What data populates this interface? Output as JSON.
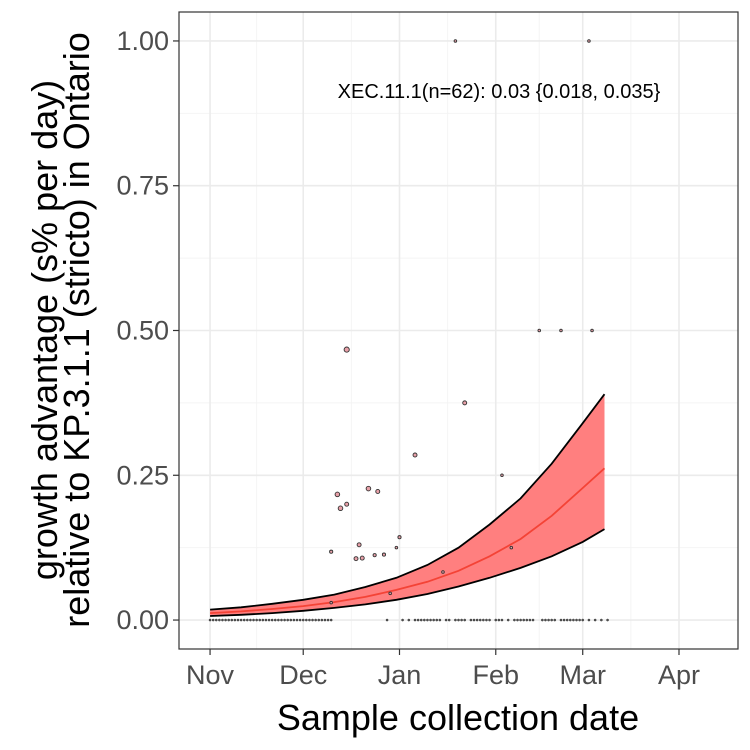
{
  "chart_data": {
    "type": "scatter",
    "xlabel": "Sample collection date",
    "ylabel_lines": [
      "growth advantage (s% per day)",
      "relative to KP.3.1.1 (stricto) in Ontario"
    ],
    "annotation": "XEC.11.1(n=62): 0.03 {0.018, 0.035}",
    "x_ticks": [
      "Nov",
      "Dec",
      "Jan",
      "Feb",
      "Mar",
      "Apr"
    ],
    "x_tick_days": [
      0,
      30,
      61,
      92,
      120,
      151
    ],
    "x_range_days": [
      -10,
      170
    ],
    "y_ticks": [
      0.0,
      0.25,
      0.5,
      0.75,
      1.0
    ],
    "y_tick_labels": [
      "0.00",
      "0.25",
      "0.50",
      "0.75",
      "1.00"
    ],
    "y_range": [
      -0.05,
      1.05
    ],
    "grid": true,
    "colors": {
      "fit_line": "#f44336",
      "ribbon_fill": "#ff7f7f",
      "ci_line": "#000000",
      "point_fill": "#e8a0a8",
      "point_stroke": "#333333",
      "panel_border": "#333333",
      "grid_major": "#ebebeb",
      "grid_minor": "#f4f4f4"
    },
    "fit": {
      "x_days": [
        0,
        10,
        20,
        30,
        40,
        50,
        60,
        70,
        80,
        90,
        100,
        110,
        120,
        127
      ],
      "mid": [
        0.012,
        0.015,
        0.019,
        0.024,
        0.031,
        0.04,
        0.052,
        0.066,
        0.085,
        0.11,
        0.14,
        0.18,
        0.228,
        0.262
      ],
      "lower": [
        0.007,
        0.009,
        0.012,
        0.016,
        0.021,
        0.027,
        0.035,
        0.045,
        0.058,
        0.073,
        0.09,
        0.11,
        0.135,
        0.157
      ],
      "upper": [
        0.018,
        0.022,
        0.028,
        0.035,
        0.044,
        0.057,
        0.073,
        0.095,
        0.125,
        0.165,
        0.21,
        0.27,
        0.34,
        0.39
      ]
    },
    "points": [
      {
        "x": 44,
        "y": 0.467,
        "s": 2.6
      },
      {
        "x": 82,
        "y": 0.375,
        "s": 2
      },
      {
        "x": 66,
        "y": 0.285,
        "s": 2
      },
      {
        "x": 41,
        "y": 0.217,
        "s": 2.3
      },
      {
        "x": 42,
        "y": 0.193,
        "s": 2.3
      },
      {
        "x": 44,
        "y": 0.2,
        "s": 2
      },
      {
        "x": 48,
        "y": 0.13,
        "s": 2
      },
      {
        "x": 51,
        "y": 0.227,
        "s": 2.3
      },
      {
        "x": 54,
        "y": 0.222,
        "s": 2
      },
      {
        "x": 39,
        "y": 0.118,
        "s": 1.6
      },
      {
        "x": 47,
        "y": 0.106,
        "s": 2
      },
      {
        "x": 49,
        "y": 0.107,
        "s": 2
      },
      {
        "x": 53,
        "y": 0.112,
        "s": 1.6
      },
      {
        "x": 56,
        "y": 0.113,
        "s": 1.6
      },
      {
        "x": 58,
        "y": 0.046,
        "s": 1.3
      },
      {
        "x": 60,
        "y": 0.125,
        "s": 1.3
      },
      {
        "x": 61,
        "y": 0.143,
        "s": 1.6
      },
      {
        "x": 39,
        "y": 0.03,
        "s": 1.3
      },
      {
        "x": 75,
        "y": 0.083,
        "s": 1.3
      },
      {
        "x": 97,
        "y": 0.125,
        "s": 1.3
      },
      {
        "x": 94,
        "y": 0.25,
        "s": 1.3
      },
      {
        "x": 79,
        "y": 1.0,
        "s": 1.3
      },
      {
        "x": 122,
        "y": 1.0,
        "s": 1.3
      },
      {
        "x": 106,
        "y": 0.5,
        "s": 1.3
      },
      {
        "x": 113,
        "y": 0.5,
        "s": 1.3
      },
      {
        "x": 123,
        "y": 0.5,
        "s": 1.3
      }
    ],
    "zero_point_days": [
      0,
      1,
      2,
      3,
      4,
      5,
      6,
      7,
      8,
      9,
      10,
      11,
      12,
      13,
      14,
      15,
      16,
      17,
      18,
      19,
      20,
      21,
      22,
      23,
      24,
      25,
      26,
      27,
      28,
      29,
      30,
      31,
      32,
      33,
      34,
      35,
      36,
      37,
      38,
      39,
      57,
      62,
      64,
      66,
      67,
      68,
      69,
      70,
      71,
      72,
      73,
      74,
      76,
      77,
      79,
      80,
      81,
      82,
      84,
      85,
      86,
      87,
      88,
      89,
      90,
      92,
      93,
      94,
      96,
      98,
      99,
      100,
      101,
      102,
      103,
      104,
      107,
      108,
      109,
      110,
      111,
      113,
      114,
      115,
      116,
      117,
      118,
      119,
      120,
      122,
      124,
      126,
      128
    ]
  }
}
